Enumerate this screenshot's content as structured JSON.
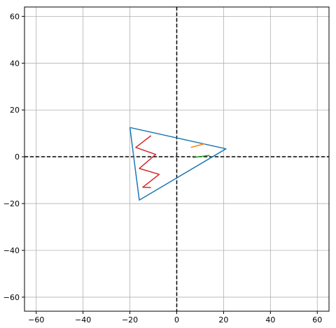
{
  "chart_data": {
    "type": "line",
    "title": "",
    "xlabel": "",
    "ylabel": "",
    "xlim": [
      -65,
      65
    ],
    "ylim": [
      -66,
      64
    ],
    "xticks": [
      -60,
      -40,
      -20,
      0,
      20,
      40,
      60
    ],
    "yticks": [
      -60,
      -40,
      -20,
      0,
      20,
      40,
      60
    ],
    "xtick_labels": [
      "−60",
      "−40",
      "−20",
      "0",
      "20",
      "40",
      "60"
    ],
    "ytick_labels": [
      "−60",
      "−40",
      "−20",
      "0",
      "20",
      "40",
      "60"
    ],
    "grid": true,
    "reference_lines": [
      {
        "orientation": "horizontal",
        "value": 0,
        "color": "#000000",
        "style": "dashed"
      },
      {
        "orientation": "vertical",
        "value": 0,
        "color": "#000000",
        "style": "dashed"
      }
    ],
    "series": [
      {
        "color": "#1f77b4",
        "closed": true,
        "points": [
          [
            -20,
            12.5
          ],
          [
            21,
            3.4
          ],
          [
            -16,
            -18.5
          ],
          [
            -20,
            12.5
          ]
        ]
      },
      {
        "color": "#d62728",
        "closed": false,
        "points": [
          [
            -11,
            9
          ],
          [
            -17.5,
            4
          ],
          [
            -9,
            1
          ],
          [
            -16,
            -5
          ],
          [
            -7.5,
            -7.5
          ],
          [
            -14.5,
            -13
          ],
          [
            -11,
            -13.2
          ]
        ]
      },
      {
        "color": "#ff7f0e",
        "closed": false,
        "points": [
          [
            6,
            4
          ],
          [
            12,
            5.6
          ]
        ]
      },
      {
        "color": "#2ca02c",
        "closed": false,
        "points": [
          [
            7,
            -0.3
          ],
          [
            14,
            0.6
          ]
        ]
      }
    ]
  }
}
